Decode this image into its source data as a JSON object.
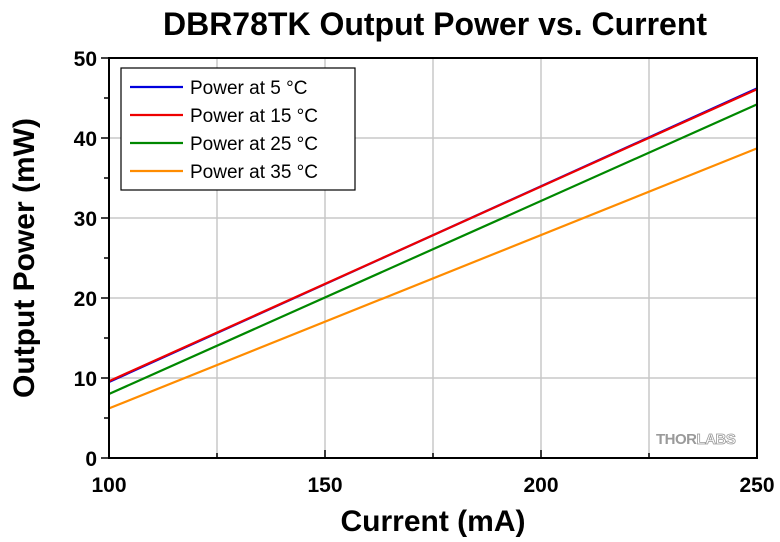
{
  "chart_data": {
    "type": "line",
    "title": "DBR78TK Output Power vs. Current",
    "xlabel": "Current (mA)",
    "ylabel": "Output Power (mW)",
    "xlim": [
      100,
      250
    ],
    "ylim": [
      0,
      50
    ],
    "x_ticks": [
      100,
      150,
      200,
      250
    ],
    "y_ticks": [
      0,
      10,
      20,
      30,
      40,
      50
    ],
    "x_minor_step": 25,
    "y_minor_step": 5,
    "grid": true,
    "legend_position": "top-left",
    "series": [
      {
        "name": "Power at 5 °C",
        "color": "#0000dd",
        "x": [
          100,
          250
        ],
        "y": [
          9.5,
          46.2
        ]
      },
      {
        "name": "Power at 15 °C",
        "color": "#ee0000",
        "x": [
          100,
          250
        ],
        "y": [
          9.6,
          46.1
        ]
      },
      {
        "name": "Power at 25 °C",
        "color": "#008800",
        "x": [
          100,
          250
        ],
        "y": [
          8.0,
          44.2
        ]
      },
      {
        "name": "Power at 35 °C",
        "color": "#ff8c00",
        "x": [
          100,
          250
        ],
        "y": [
          6.2,
          38.7
        ]
      }
    ]
  },
  "watermark": {
    "part1": "THOR",
    "part2": "LABS"
  }
}
